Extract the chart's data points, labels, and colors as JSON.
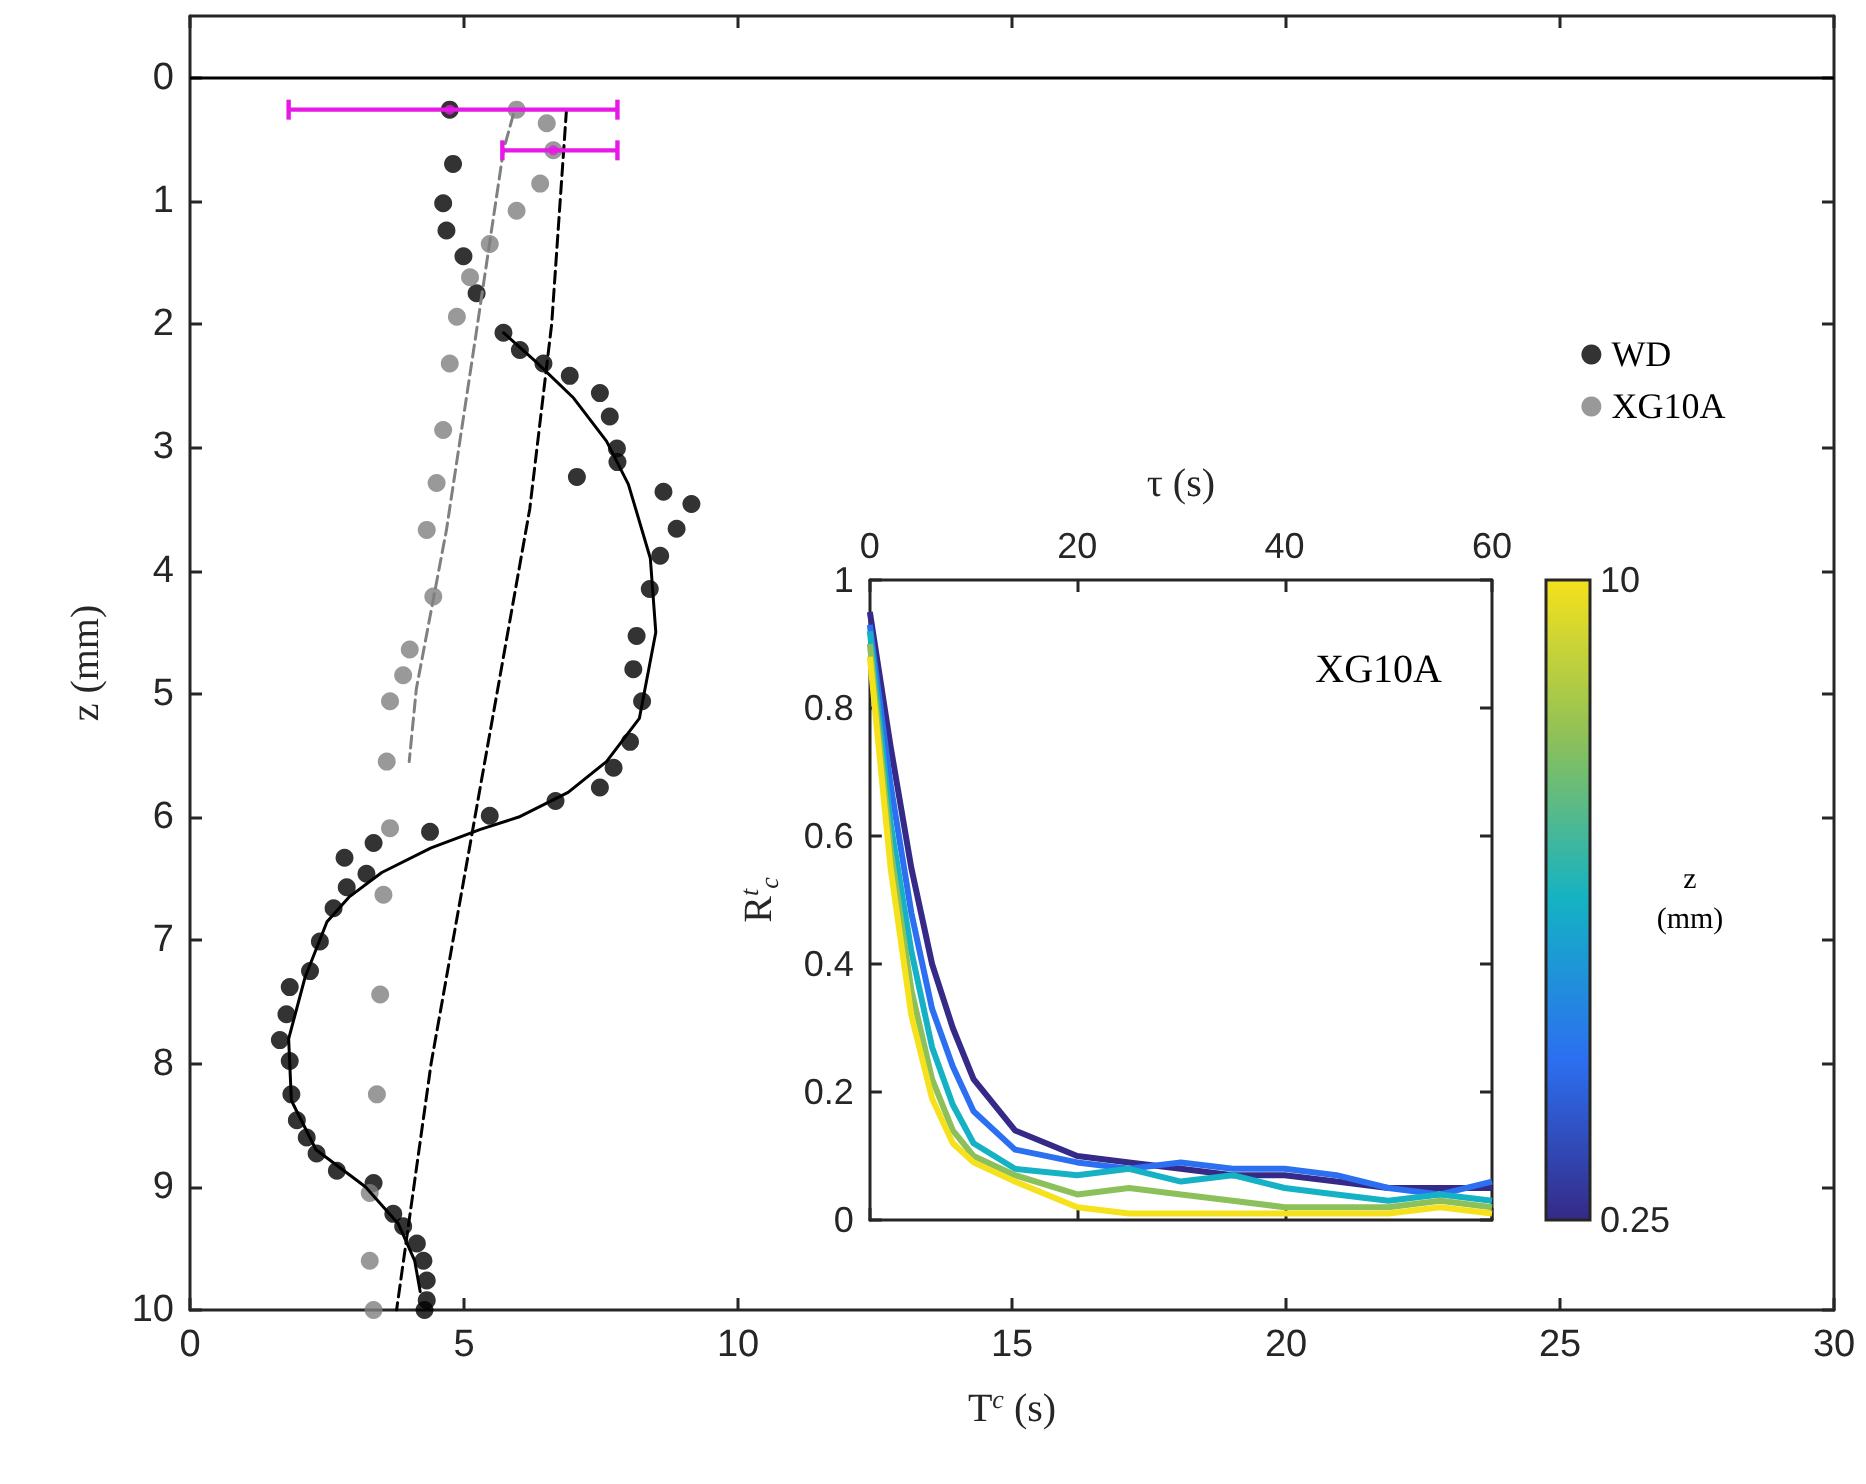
{
  "chart_data": [
    {
      "type": "scatter",
      "xlabel": "T$^{c}$ (s)",
      "ylabel": "z (mm)",
      "xlim": [
        0,
        30
      ],
      "xticks": [
        0,
        5,
        10,
        15,
        20,
        25,
        30
      ],
      "ylim": [
        10,
        -0.5
      ],
      "yticks": [
        0,
        1,
        2,
        3,
        4,
        5,
        6,
        7,
        8,
        9,
        10
      ],
      "grid": false,
      "legend": "top right",
      "ref_lines": [
        {
          "axis": "y",
          "value": 0,
          "color": "#000000",
          "line_style": "solid"
        }
      ],
      "series": [
        {
          "name": "WD",
          "type": "scatter",
          "marker": "circle",
          "color": "#000000",
          "x": [
            4.74,
            4.8,
            4.62,
            4.68,
            4.99,
            5.23,
            5.72,
            6.02,
            6.45,
            6.93,
            7.48,
            7.66,
            7.79,
            7.8,
            7.06,
            8.64,
            9.15,
            8.88,
            8.58,
            8.39,
            8.15,
            8.09,
            8.25,
            8.03,
            7.73,
            7.48,
            6.67,
            5.47,
            4.38,
            3.35,
            2.82,
            3.22,
            2.86,
            2.62,
            2.37,
            2.19,
            1.82,
            1.76,
            1.64,
            1.82,
            1.85,
            1.95,
            2.13,
            2.31,
            2.68,
            3.35,
            3.71,
            3.89,
            4.14,
            4.26,
            4.32,
            4.32,
            4.28
          ],
          "values": [
            0.26,
            0.7,
            1.02,
            1.24,
            1.45,
            1.75,
            2.07,
            2.21,
            2.32,
            2.42,
            2.56,
            2.75,
            3.01,
            3.12,
            3.24,
            3.36,
            3.46,
            3.66,
            3.88,
            4.15,
            4.53,
            4.8,
            5.06,
            5.39,
            5.6,
            5.76,
            5.87,
            5.99,
            6.12,
            6.21,
            6.33,
            6.46,
            6.57,
            6.74,
            7.01,
            7.25,
            7.38,
            7.6,
            7.81,
            7.98,
            8.25,
            8.46,
            8.6,
            8.73,
            8.87,
            8.97,
            9.22,
            9.32,
            9.46,
            9.6,
            9.76,
            9.92,
            10.0
          ]
        },
        {
          "name": "XG10A",
          "type": "scatter",
          "marker": "circle",
          "color": "#808080",
          "x": [
            5.96,
            6.51,
            6.63,
            6.39,
            5.96,
            5.47,
            5.11,
            4.87,
            4.74,
            4.62,
            4.5,
            4.32,
            4.44,
            4.01,
            3.89,
            3.65,
            3.59,
            3.65,
            3.53,
            3.47,
            3.41,
            3.28,
            3.28,
            3.35
          ],
          "values": [
            0.26,
            0.37,
            0.59,
            0.86,
            1.08,
            1.35,
            1.62,
            1.94,
            2.32,
            2.86,
            3.29,
            3.67,
            4.21,
            4.64,
            4.85,
            5.06,
            5.55,
            6.09,
            6.63,
            7.44,
            8.25,
            9.05,
            9.6,
            10.0
          ]
        },
        {
          "type": "line",
          "line_style": "solid",
          "color": "#000000",
          "x": [
            5.72,
            6.3,
            7.0,
            7.6,
            8.0,
            8.4,
            8.5,
            8.2,
            7.6,
            6.9,
            6.0,
            5.3,
            4.4,
            3.5,
            2.9,
            2.5,
            2.1,
            1.8,
            1.85,
            2.3,
            3.2,
            3.8,
            4.1,
            4.2
          ],
          "values": [
            2.07,
            2.3,
            2.6,
            2.95,
            3.3,
            3.9,
            4.5,
            5.2,
            5.55,
            5.8,
            6.0,
            6.1,
            6.25,
            6.45,
            6.65,
            6.85,
            7.3,
            7.8,
            8.3,
            8.7,
            9.0,
            9.3,
            9.6,
            9.85
          ]
        },
        {
          "type": "line",
          "line_style": "dashed",
          "color": "#000000",
          "x": [
            6.87,
            6.6,
            6.2,
            5.6,
            5.0,
            4.4,
            3.77
          ],
          "values": [
            0.26,
            2.0,
            3.5,
            5.0,
            6.5,
            8.0,
            10.0
          ]
        },
        {
          "type": "line",
          "line_style": "dashed",
          "color": "#808080",
          "x": [
            5.9,
            5.72,
            5.23,
            4.68,
            4.13,
            4.0
          ],
          "values": [
            0.3,
            0.59,
            2.05,
            3.67,
            4.96,
            5.55
          ]
        },
        {
          "type": "scatter",
          "marker": "circle",
          "color": "#e619e6",
          "x": [
            4.74,
            6.63
          ],
          "values": [
            0.26,
            0.59
          ],
          "xerrors": [
            [
              1.8,
              7.8
            ],
            [
              5.7,
              7.8
            ]
          ]
        }
      ]
    },
    {
      "type": "line",
      "xlabel": "τ (s)",
      "ylabel": "R$^{t}$$_{c}$",
      "xlim": [
        0,
        60
      ],
      "xticks": [
        0,
        20,
        40,
        60
      ],
      "ylim": [
        0,
        1
      ],
      "yticks": [
        0,
        0.2,
        0.4,
        0.6,
        0.8,
        1
      ],
      "grid": false,
      "legend": false,
      "annotations": [
        "XG10A"
      ],
      "clabel": "z\n(mm)",
      "clim": [
        0.25,
        10
      ],
      "cticks": [
        0.25,
        10
      ],
      "x": [
        0,
        2,
        4,
        6,
        8,
        10,
        14,
        20,
        25,
        30,
        35,
        40,
        45,
        50,
        55,
        60
      ],
      "series": [
        {
          "color": "#352a87",
          "values": [
            0.95,
            0.74,
            0.55,
            0.4,
            0.3,
            0.22,
            0.14,
            0.1,
            0.09,
            0.08,
            0.07,
            0.07,
            0.06,
            0.05,
            0.05,
            0.05
          ]
        },
        {
          "color": "#2c6ff0",
          "values": [
            0.93,
            0.68,
            0.48,
            0.33,
            0.24,
            0.17,
            0.11,
            0.09,
            0.08,
            0.09,
            0.08,
            0.08,
            0.07,
            0.05,
            0.04,
            0.06
          ]
        },
        {
          "color": "#14b2c4",
          "values": [
            0.92,
            0.62,
            0.42,
            0.27,
            0.18,
            0.12,
            0.08,
            0.07,
            0.08,
            0.06,
            0.07,
            0.05,
            0.04,
            0.03,
            0.04,
            0.03
          ]
        },
        {
          "color": "#8cc05a",
          "values": [
            0.9,
            0.58,
            0.36,
            0.22,
            0.14,
            0.1,
            0.07,
            0.04,
            0.05,
            0.04,
            0.03,
            0.02,
            0.02,
            0.02,
            0.03,
            0.02
          ]
        },
        {
          "color": "#f5e11c",
          "values": [
            0.88,
            0.55,
            0.32,
            0.19,
            0.12,
            0.09,
            0.06,
            0.02,
            0.01,
            0.01,
            0.01,
            0.01,
            0.01,
            0.01,
            0.02,
            0.01
          ]
        }
      ]
    }
  ]
}
